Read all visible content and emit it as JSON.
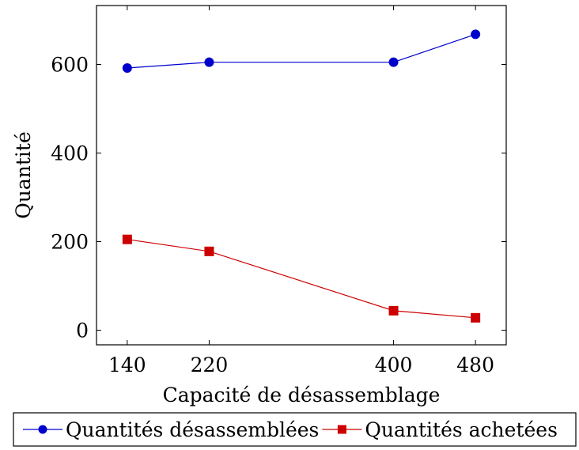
{
  "chart_data": {
    "type": "line",
    "title": "",
    "xlabel": "Capacité de désassemblage",
    "ylabel": "Quantité",
    "x": [
      140,
      220,
      400,
      480
    ],
    "xticks": [
      140,
      220,
      400,
      480
    ],
    "yticks": [
      0,
      200,
      400,
      600
    ],
    "xlim": [
      110,
      510
    ],
    "ylim": [
      -33,
      733
    ],
    "grid": false,
    "legend_position": "bottom",
    "series": [
      {
        "name": "Quantités désassemblées",
        "values": [
          592,
          605,
          605,
          668
        ],
        "color": "#0000cc",
        "marker": "circle"
      },
      {
        "name": "Quantités achetées",
        "values": [
          205,
          178,
          44,
          28
        ],
        "color": "#cc0000",
        "marker": "square"
      }
    ]
  }
}
